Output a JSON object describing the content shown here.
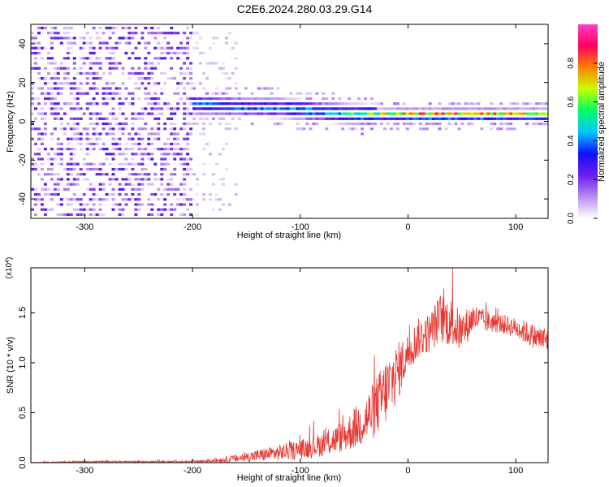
{
  "figure": {
    "title": "C2E6.2024.280.03.29.G14"
  },
  "chart_data": [
    {
      "type": "heatmap",
      "xlabel": "Height of straight line (km)",
      "ylabel": "Frequency (Hz)",
      "xlim": [
        -350,
        130
      ],
      "ylim": [
        -50,
        50
      ],
      "xticks": [
        -300,
        -200,
        -100,
        0,
        100
      ],
      "yticks": [
        -40,
        -20,
        0,
        20,
        40
      ],
      "colorbar": {
        "label": "Normalized spectral amplitude",
        "range": [
          0,
          1
        ],
        "ticks": [
          "0.0",
          "0.2",
          "0.4",
          "0.6",
          "0.8"
        ],
        "colors": [
          "#ffffff",
          "#b68cf0",
          "#6a1cf0",
          "#1010ff",
          "#00c8ff",
          "#00ff60",
          "#c8ff00",
          "#ff8000",
          "#ff0060",
          "#ff40c0"
        ]
      },
      "trend": {
        "x": [
          -210,
          -180,
          -150,
          -120,
          -100,
          -80,
          -60,
          -40,
          -20,
          0,
          30,
          60,
          90,
          130
        ],
        "freq": [
          7,
          6,
          5.5,
          5,
          4,
          3,
          2,
          1.5,
          1.5,
          1.5,
          1.5,
          1.5,
          1.5,
          1.5
        ],
        "amplitude": [
          0.45,
          0.45,
          0.45,
          0.45,
          0.5,
          0.5,
          0.55,
          0.6,
          0.8,
          0.9,
          0.95,
          0.95,
          0.9,
          0.8
        ]
      },
      "noise_region_x": [
        -350,
        -200
      ]
    },
    {
      "type": "line",
      "xlabel": "Height of straight line (km)",
      "ylabel": "SNR (10 * v/v)",
      "yscale_note": "(x10",
      "yscale_exp": "4",
      "xlim": [
        -350,
        130
      ],
      "ylim": [
        0,
        1.95
      ],
      "xticks": [
        -300,
        -200,
        -100,
        0,
        100
      ],
      "yticks": [
        "0.0",
        "0.5",
        "1.0",
        "1.5"
      ],
      "color": "#e83a35",
      "series": [
        {
          "x": [
            -350,
            -300,
            -250,
            -200,
            -180,
            -160,
            -140,
            -120,
            -100,
            -80,
            -60,
            -40,
            -30,
            -20,
            -10,
            0,
            10,
            20,
            30,
            40,
            50,
            60,
            70,
            80,
            90,
            100,
            110,
            120,
            130
          ],
          "y": [
            0.0,
            0.01,
            0.01,
            0.01,
            0.02,
            0.04,
            0.07,
            0.1,
            0.13,
            0.18,
            0.26,
            0.42,
            0.55,
            0.72,
            0.9,
            1.1,
            1.25,
            1.3,
            1.45,
            1.4,
            1.3,
            1.45,
            1.42,
            1.4,
            1.38,
            1.35,
            1.3,
            1.25,
            1.22
          ],
          "jitter": [
            0.005,
            0.008,
            0.008,
            0.01,
            0.02,
            0.04,
            0.06,
            0.08,
            0.1,
            0.12,
            0.16,
            0.25,
            0.3,
            0.35,
            0.3,
            0.2,
            0.2,
            0.2,
            0.25,
            0.25,
            0.2,
            0.15,
            0.12,
            0.1,
            0.1,
            0.1,
            0.12,
            0.12,
            0.15
          ]
        }
      ]
    }
  ]
}
